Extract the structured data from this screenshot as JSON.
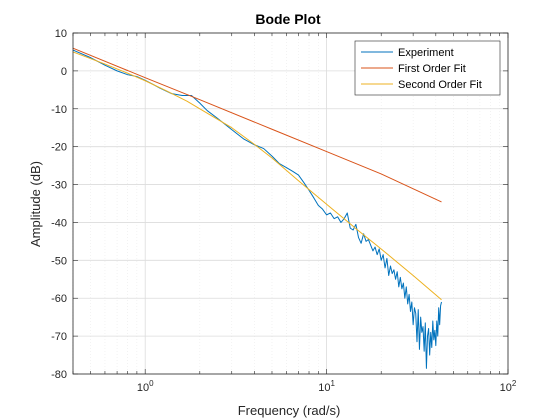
{
  "chart_data": {
    "type": "line",
    "title": "Bode Plot",
    "xlabel": "Frequency (rad/s)",
    "ylabel": "Amplitude (dB)",
    "xscale": "log",
    "xlim": [
      0.4,
      100
    ],
    "ylim": [
      -80,
      10
    ],
    "grid": "on",
    "legend_position": "top-right",
    "x_ticks": [
      {
        "value": 1,
        "base": "10",
        "exp": "0"
      },
      {
        "value": 10,
        "base": "10",
        "exp": "1"
      },
      {
        "value": 100,
        "base": "10",
        "exp": "2"
      }
    ],
    "y_ticks": [
      10,
      0,
      -10,
      -20,
      -30,
      -40,
      -50,
      -60,
      -70,
      -80
    ],
    "series": [
      {
        "name": "Experiment",
        "color": "#0072BD",
        "x": [
          0.4,
          0.5,
          0.6,
          0.7,
          0.8,
          0.9,
          1.0,
          1.1,
          1.2,
          1.4,
          1.6,
          1.8,
          2.0,
          2.2,
          2.5,
          3.0,
          3.5,
          4.0,
          4.5,
          5.0,
          5.5,
          6.0,
          6.5,
          7.0,
          7.5,
          8.0,
          8.5,
          9.0,
          9.5,
          10.0,
          10.5,
          11.0,
          11.5,
          12.0,
          12.5,
          13.0,
          13.5,
          14.0,
          14.5,
          15.0,
          15.5,
          16.0,
          16.5,
          17.0,
          17.5,
          18.0,
          18.5,
          19.0,
          19.5,
          20.0,
          20.5,
          21.0,
          21.5,
          22.0,
          22.5,
          23.0,
          23.5,
          24.0,
          24.5,
          25.0,
          25.5,
          26.0,
          26.5,
          27.0,
          27.5,
          28.0,
          28.5,
          29.0,
          29.5,
          30.0,
          30.5,
          31.0,
          31.5,
          32.0,
          32.5,
          33.0,
          33.5,
          34.0,
          34.5,
          35.0,
          35.5,
          36.0,
          36.5,
          37.0,
          37.5,
          38.0,
          38.5,
          39.0,
          39.5,
          40.0,
          40.5,
          41.0,
          41.5,
          42.0,
          42.5,
          43.0
        ],
        "y": [
          5.5,
          3.5,
          1.5,
          0.0,
          -1.0,
          -1.5,
          -2.5,
          -3.5,
          -4.5,
          -6.0,
          -6.5,
          -6.5,
          -8.5,
          -10.5,
          -12.5,
          -15.5,
          -18.0,
          -19.5,
          -20.5,
          -22.5,
          -24.5,
          -25.5,
          -26.5,
          -27.5,
          -29.5,
          -31.5,
          -33.5,
          -35.5,
          -36.5,
          -38.0,
          -37.5,
          -39.0,
          -38.5,
          -40.0,
          -39.0,
          -37.5,
          -41.5,
          -42.0,
          -40.5,
          -44.0,
          -45.5,
          -43.0,
          -45.0,
          -44.5,
          -46.0,
          -47.5,
          -46.5,
          -48.5,
          -47.0,
          -50.0,
          -48.5,
          -52.0,
          -49.5,
          -54.0,
          -51.5,
          -53.5,
          -52.5,
          -55.0,
          -53.0,
          -57.0,
          -54.5,
          -57.5,
          -56.0,
          -60.0,
          -57.0,
          -61.5,
          -59.0,
          -63.5,
          -61.0,
          -67.0,
          -62.5,
          -64.0,
          -71.5,
          -63.0,
          -73.5,
          -65.0,
          -69.0,
          -67.5,
          -74.0,
          -66.5,
          -78.5,
          -70.0,
          -68.0,
          -75.0,
          -69.0,
          -73.0,
          -66.0,
          -71.0,
          -68.5,
          -72.5,
          -66.0,
          -70.0,
          -62.5,
          -67.0,
          -62.0,
          -61.0
        ]
      },
      {
        "name": "First Order Fit",
        "color": "#D95319",
        "x": [
          0.4,
          1,
          2,
          5,
          10,
          20,
          43
        ],
        "y": [
          6.0,
          -1.8,
          -7.6,
          -15.4,
          -21.3,
          -27.2,
          -34.6
        ]
      },
      {
        "name": "Second Order Fit",
        "color": "#EDB120",
        "x": [
          0.4,
          0.6,
          0.8,
          1,
          1.3,
          1.7,
          2,
          3,
          4,
          5,
          7,
          10,
          15,
          20,
          30,
          43
        ],
        "y": [
          5.0,
          1.8,
          -0.6,
          -2.6,
          -5.2,
          -8.0,
          -10.0,
          -15.0,
          -19.4,
          -23.0,
          -29.0,
          -35.2,
          -42.2,
          -47.0,
          -54.0,
          -60.4
        ]
      }
    ]
  }
}
